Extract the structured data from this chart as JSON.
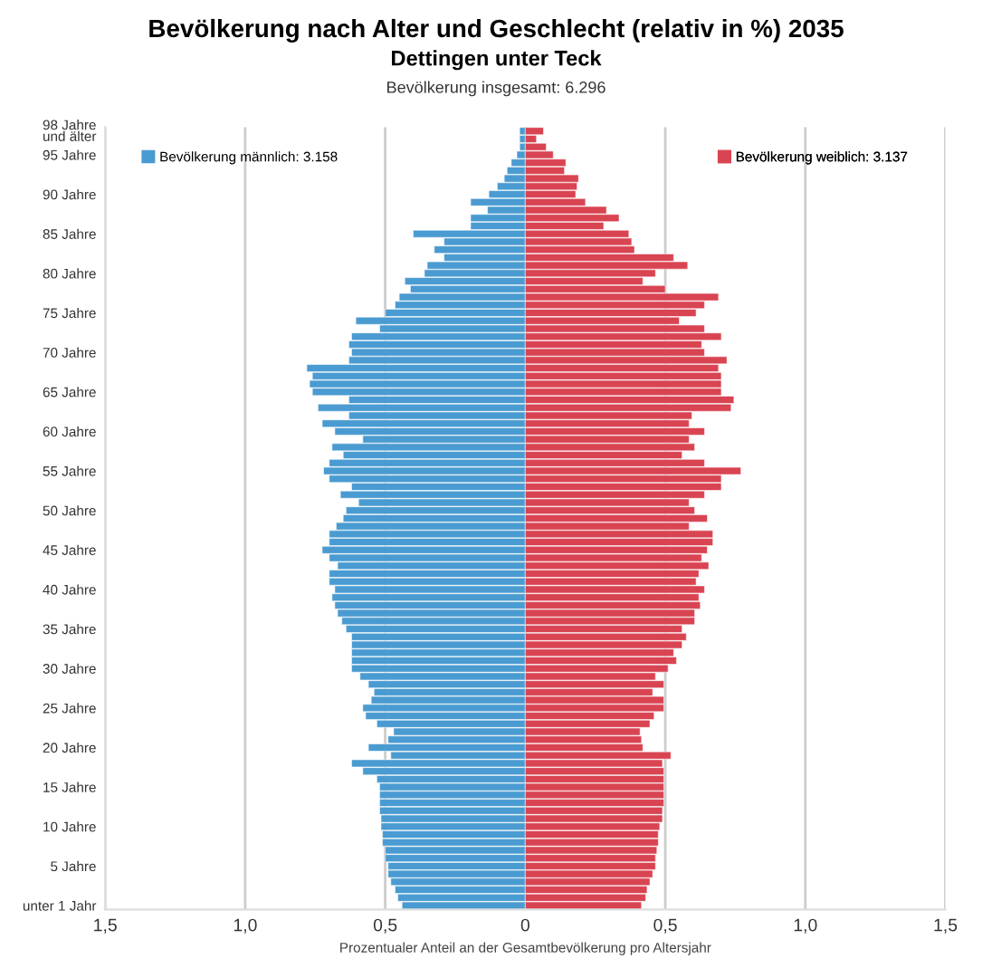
{
  "chart_data": {
    "type": "bar",
    "orientation": "horizontal",
    "title": "Bevölkerung nach Alter und Geschlecht (relativ in %) 2035",
    "subtitle": "Dettingen unter Teck",
    "annotations": [
      "Bevölkerung insgesamt: 6.296"
    ],
    "xlabel": "Prozentualer Anteil an der Gesamtbevölkerung pro Altersjahr",
    "categories": [
      "98 Jahre\nund älter",
      null,
      null,
      "95 Jahre",
      null,
      null,
      null,
      null,
      "90 Jahre",
      null,
      null,
      null,
      null,
      "85 Jahre",
      null,
      null,
      null,
      null,
      "80 Jahre",
      null,
      null,
      null,
      null,
      "75 Jahre",
      null,
      null,
      null,
      null,
      "70 Jahre",
      null,
      null,
      null,
      null,
      "65 Jahre",
      null,
      null,
      null,
      null,
      "60 Jahre",
      null,
      null,
      null,
      null,
      "55 Jahre",
      null,
      null,
      null,
      null,
      "50 Jahre",
      null,
      null,
      null,
      null,
      "45 Jahre",
      null,
      null,
      null,
      null,
      "40 Jahre",
      null,
      null,
      null,
      null,
      "35 Jahre",
      null,
      null,
      null,
      null,
      "30 Jahre",
      null,
      null,
      null,
      null,
      "25 Jahre",
      null,
      null,
      null,
      null,
      "20 Jahre",
      null,
      null,
      null,
      null,
      "15 Jahre",
      null,
      null,
      null,
      null,
      "10 Jahre",
      null,
      null,
      null,
      null,
      "5 Jahre",
      null,
      null,
      null,
      null,
      "unter 1 Jahr"
    ],
    "series": [
      {
        "name": "Bevölkerung männlich: 3.158",
        "color": "#4a9bd1",
        "values": [
          -0.02,
          -0.02,
          -0.02,
          -0.03,
          -0.05,
          -0.065,
          -0.075,
          -0.1,
          -0.13,
          -0.195,
          -0.135,
          -0.195,
          -0.195,
          -0.4,
          -0.29,
          -0.325,
          -0.29,
          -0.35,
          -0.36,
          -0.43,
          -0.41,
          -0.45,
          -0.465,
          -0.5,
          -0.605,
          -0.52,
          -0.62,
          -0.63,
          -0.62,
          -0.63,
          -0.78,
          -0.76,
          -0.77,
          -0.76,
          -0.63,
          -0.74,
          -0.63,
          -0.725,
          -0.68,
          -0.58,
          -0.69,
          -0.65,
          -0.7,
          -0.72,
          -0.7,
          -0.62,
          -0.66,
          -0.595,
          -0.64,
          -0.65,
          -0.675,
          -0.7,
          -0.7,
          -0.725,
          -0.7,
          -0.67,
          -0.7,
          -0.7,
          -0.68,
          -0.69,
          -0.68,
          -0.67,
          -0.655,
          -0.64,
          -0.62,
          -0.62,
          -0.62,
          -0.62,
          -0.62,
          -0.59,
          -0.56,
          -0.54,
          -0.55,
          -0.58,
          -0.57,
          -0.53,
          -0.47,
          -0.49,
          -0.56,
          -0.48,
          -0.62,
          -0.58,
          -0.53,
          -0.52,
          -0.52,
          -0.52,
          -0.52,
          -0.515,
          -0.515,
          -0.51,
          -0.51,
          -0.5,
          -0.5,
          -0.49,
          -0.49,
          -0.48,
          -0.465,
          -0.455,
          -0.44
        ]
      },
      {
        "name": "Bevölkerung weiblich: 3.137",
        "color": "#d94452",
        "values": [
          0.065,
          0.04,
          0.075,
          0.1,
          0.145,
          0.14,
          0.19,
          0.185,
          0.18,
          0.215,
          0.29,
          0.335,
          0.28,
          0.37,
          0.38,
          0.39,
          0.53,
          0.58,
          0.465,
          0.42,
          0.5,
          0.69,
          0.64,
          0.61,
          0.55,
          0.64,
          0.7,
          0.63,
          0.64,
          0.72,
          0.69,
          0.7,
          0.7,
          0.7,
          0.745,
          0.735,
          0.595,
          0.585,
          0.64,
          0.585,
          0.605,
          0.56,
          0.64,
          0.77,
          0.7,
          0.7,
          0.64,
          0.585,
          0.605,
          0.65,
          0.585,
          0.67,
          0.67,
          0.65,
          0.63,
          0.655,
          0.62,
          0.61,
          0.64,
          0.62,
          0.625,
          0.605,
          0.605,
          0.56,
          0.575,
          0.56,
          0.53,
          0.54,
          0.51,
          0.465,
          0.495,
          0.455,
          0.495,
          0.495,
          0.46,
          0.445,
          0.41,
          0.415,
          0.42,
          0.52,
          0.49,
          0.495,
          0.495,
          0.495,
          0.495,
          0.495,
          0.49,
          0.49,
          0.48,
          0.475,
          0.475,
          0.47,
          0.465,
          0.465,
          0.455,
          0.445,
          0.435,
          0.43,
          0.415
        ]
      }
    ],
    "xlim": [
      -1.5,
      1.5
    ],
    "xticks": [
      {
        "value": -1.5,
        "label": "1,5"
      },
      {
        "value": -1.0,
        "label": "1,0"
      },
      {
        "value": -0.5,
        "label": "0,5"
      },
      0,
      {
        "value": 0.5,
        "label": "0,5"
      },
      {
        "value": 1.0,
        "label": "1,0"
      },
      {
        "value": 1.5,
        "label": "1,5"
      }
    ],
    "grid": "x",
    "legend": "top",
    "stacked": true
  }
}
